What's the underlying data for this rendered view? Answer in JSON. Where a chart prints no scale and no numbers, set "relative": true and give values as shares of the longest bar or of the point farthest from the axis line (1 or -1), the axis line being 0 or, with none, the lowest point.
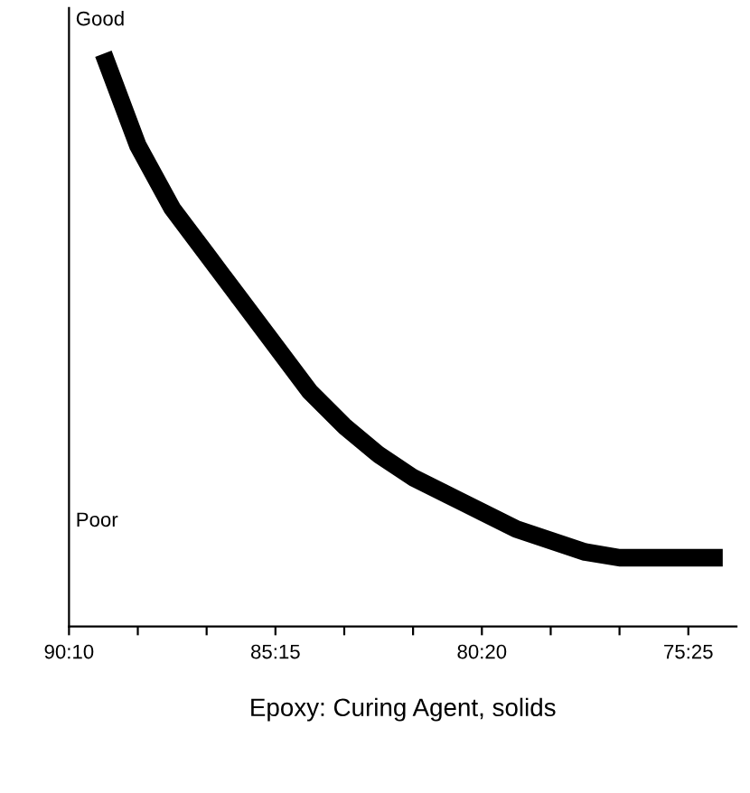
{
  "chart_data": {
    "type": "line",
    "relative": true,
    "xlabel": "Epoxy: Curing Agent, solids",
    "annotations": [
      "Good",
      "Poor"
    ],
    "categories": [
      "90:10",
      null,
      null,
      null,
      null,
      null,
      "85:15",
      null,
      null,
      null,
      null,
      null,
      "80:20",
      null,
      null,
      null,
      null,
      null,
      "75:25",
      null
    ],
    "series": [
      {
        "color": "#000000",
        "values": [
          null,
          1,
          0.84,
          0.73,
          0.65,
          0.57,
          0.49,
          0.41,
          0.35,
          0.3,
          0.26,
          0.23,
          0.2,
          0.17,
          0.15,
          0.13,
          0.12,
          0.12,
          0.12,
          0.12
        ]
      }
    ],
    "grid": false,
    "legend": false,
    "marker": "none",
    "line_style": "solid"
  }
}
